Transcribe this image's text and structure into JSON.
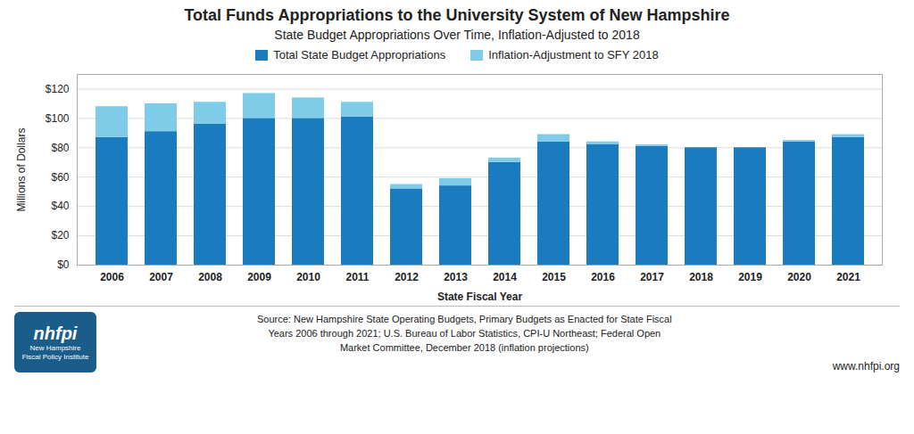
{
  "chart_data": {
    "type": "bar",
    "stacked": true,
    "title": "Total Funds Appropriations to the University System of New Hampshire",
    "subtitle": "State Budget Appropriations Over Time, Inflation-Adjusted to 2018",
    "xlabel": "State Fiscal Year",
    "ylabel": "Millions of Dollars",
    "categories": [
      "2006",
      "2007",
      "2008",
      "2009",
      "2010",
      "2011",
      "2012",
      "2013",
      "2014",
      "2015",
      "2016",
      "2017",
      "2018",
      "2019",
      "2020",
      "2021"
    ],
    "series": [
      {
        "name": "Total State Budget Appropriations",
        "color": "#1a7bbf",
        "values": [
          87,
          91,
          96,
          100,
          100,
          101,
          52,
          54,
          70,
          84,
          82,
          81,
          80,
          80,
          84,
          87
        ]
      },
      {
        "name": "Inflation-Adjustment to SFY 2018",
        "color": "#7ecce8",
        "values": [
          21,
          19,
          15,
          17,
          14,
          10,
          3,
          5,
          3,
          5,
          2,
          1,
          0,
          0,
          1,
          2
        ]
      }
    ],
    "ylim": [
      0,
      130
    ],
    "yticks": [
      {
        "value": 0,
        "label": "$0"
      },
      {
        "value": 20,
        "label": "$20"
      },
      {
        "value": 40,
        "label": "$40"
      },
      {
        "value": 60,
        "label": "$60"
      },
      {
        "value": 80,
        "label": "$80"
      },
      {
        "value": 100,
        "label": "$100"
      },
      {
        "value": 120,
        "label": "$120"
      }
    ],
    "grid": true,
    "legend": "top",
    "caption": "Source: New Hampshire State Operating Budgets, Primary Budgets as Enacted for State Fiscal\nYears 2006 through 2021; U.S. Bureau of Labor Statistics, CPI-U Northeast; Federal Open\nMarket Committee, December 2018 (inflation projections)",
    "annotations": [
      "nhfpi",
      "New Hampshire\nFiscal Policy Institute",
      "www.nhfpi.org"
    ]
  }
}
